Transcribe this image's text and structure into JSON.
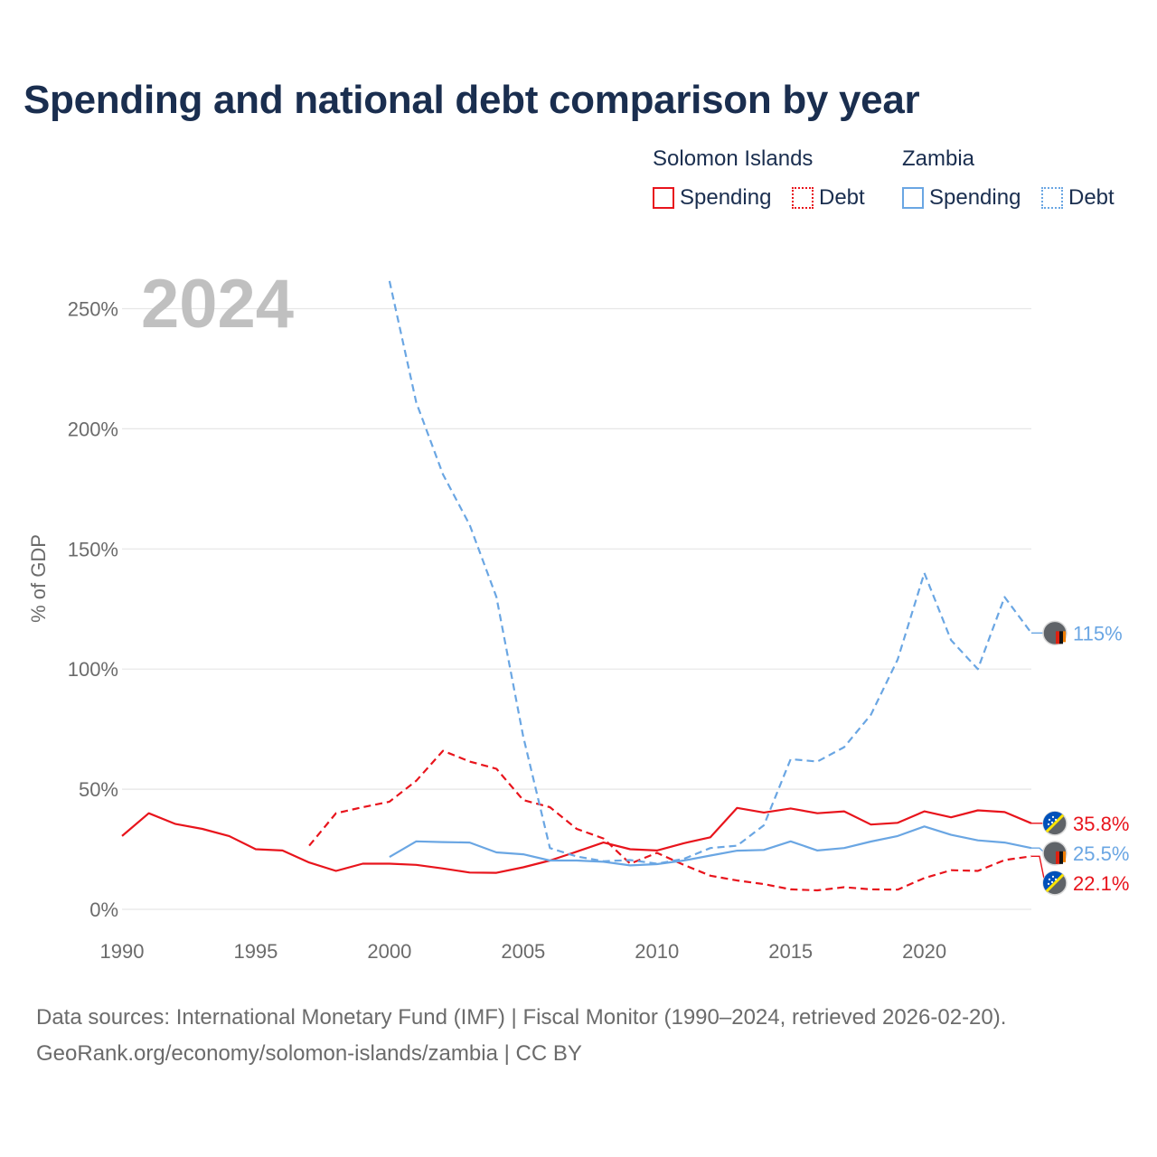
{
  "title": "Spending and national debt comparison by year",
  "legend": {
    "groups": [
      {
        "name": "Solomon Islands",
        "items": [
          "Spending",
          "Debt"
        ]
      },
      {
        "name": "Zambia",
        "items": [
          "Spending",
          "Debt"
        ]
      }
    ]
  },
  "colors": {
    "solomon": "#e8141c",
    "zambia": "#6aa6e3",
    "grid": "#e6e6e6",
    "axis_text": "#6b6b6b",
    "year_label": "#c0c0c0",
    "title": "#1a2e4f"
  },
  "chart_data": {
    "type": "line",
    "title": "Spending and national debt comparison by year",
    "year_label": "2024",
    "ylabel": "% of GDP",
    "xlabel": "",
    "xlim": [
      1990,
      2024
    ],
    "ylim": [
      0,
      260
    ],
    "y_ticks": [
      0,
      50,
      100,
      150,
      200,
      250
    ],
    "y_tick_labels": [
      "0%",
      "50%",
      "100%",
      "150%",
      "200%",
      "250%"
    ],
    "x_ticks": [
      1990,
      1995,
      2000,
      2005,
      2010,
      2015,
      2020
    ],
    "x_tick_labels": [
      "1990",
      "1995",
      "2000",
      "2005",
      "2010",
      "2015",
      "2020"
    ],
    "grid": true,
    "series": [
      {
        "name": "Solomon Islands Spending",
        "country": "Solomon Islands",
        "metric": "Spending",
        "style": "solid",
        "color": "#e8141c",
        "x": [
          1990,
          1991,
          1992,
          1993,
          1994,
          1995,
          1996,
          1997,
          1998,
          1999,
          2000,
          2001,
          2002,
          2003,
          2004,
          2005,
          2006,
          2007,
          2008,
          2009,
          2010,
          2011,
          2012,
          2013,
          2014,
          2015,
          2016,
          2017,
          2018,
          2019,
          2020,
          2021,
          2022,
          2023,
          2024
        ],
        "values": [
          30.5,
          40,
          35.5,
          33.5,
          30.5,
          25,
          24.5,
          19.5,
          16,
          19,
          19,
          18.5,
          17,
          15.3,
          15.2,
          17.5,
          20.3,
          24,
          27.8,
          25,
          24.5,
          27.5,
          30,
          42.2,
          40.3,
          42,
          40,
          40.8,
          35.3,
          36,
          40.8,
          38.3,
          41.2,
          40.5,
          35.8
        ],
        "end_label": "35.8%"
      },
      {
        "name": "Solomon Islands Debt",
        "country": "Solomon Islands",
        "metric": "Debt",
        "style": "dashed",
        "color": "#e8141c",
        "x": [
          1997,
          1998,
          1999,
          2000,
          2001,
          2002,
          2003,
          2004,
          2005,
          2006,
          2007,
          2008,
          2009,
          2010,
          2011,
          2012,
          2013,
          2014,
          2015,
          2016,
          2017,
          2018,
          2019,
          2020,
          2021,
          2022,
          2023,
          2024
        ],
        "values": [
          26.5,
          40,
          42.5,
          44.8,
          53.5,
          66,
          61.5,
          58.5,
          45.5,
          42.5,
          33.5,
          29.5,
          19,
          23.5,
          18.5,
          14,
          12,
          10.5,
          8.3,
          7.9,
          9.2,
          8.3,
          8.2,
          13,
          16.3,
          16,
          20.5,
          22.1
        ],
        "end_label": "22.1%"
      },
      {
        "name": "Zambia Spending",
        "country": "Zambia",
        "metric": "Spending",
        "style": "solid",
        "color": "#6aa6e3",
        "x": [
          2000,
          2001,
          2002,
          2003,
          2004,
          2005,
          2006,
          2007,
          2008,
          2009,
          2010,
          2011,
          2012,
          2013,
          2014,
          2015,
          2016,
          2017,
          2018,
          2019,
          2020,
          2021,
          2022,
          2023,
          2024
        ],
        "values": [
          21.8,
          28.3,
          28,
          27.8,
          23.7,
          22.9,
          20.3,
          20.3,
          19.8,
          18.3,
          18.8,
          20.3,
          22.4,
          24.4,
          24.7,
          28.3,
          24.5,
          25.5,
          28.2,
          30.5,
          34.5,
          31,
          28.7,
          27.8,
          25.5
        ],
        "end_label": "25.5%"
      },
      {
        "name": "Zambia Debt",
        "country": "Zambia",
        "metric": "Debt",
        "style": "dashed",
        "color": "#6aa6e3",
        "x": [
          2000,
          2001,
          2002,
          2003,
          2004,
          2005,
          2006,
          2007,
          2008,
          2009,
          2010,
          2011,
          2012,
          2013,
          2014,
          2015,
          2016,
          2017,
          2018,
          2019,
          2020,
          2021,
          2022,
          2023,
          2024
        ],
        "values": [
          261.5,
          211,
          181,
          160,
          130,
          72,
          25.5,
          22,
          20,
          20.5,
          19,
          21,
          25.5,
          26.5,
          35,
          62.5,
          61.5,
          67.5,
          81,
          104,
          140,
          112,
          100,
          130,
          115
        ],
        "end_label": "115%"
      }
    ]
  },
  "source": {
    "line1": "Data sources: International Monetary Fund (IMF) | Fiscal Monitor (1990–2024, retrieved 2026-02-20).",
    "line2": "GeoRank.org/economy/solomon-islands/zambia | CC BY"
  }
}
